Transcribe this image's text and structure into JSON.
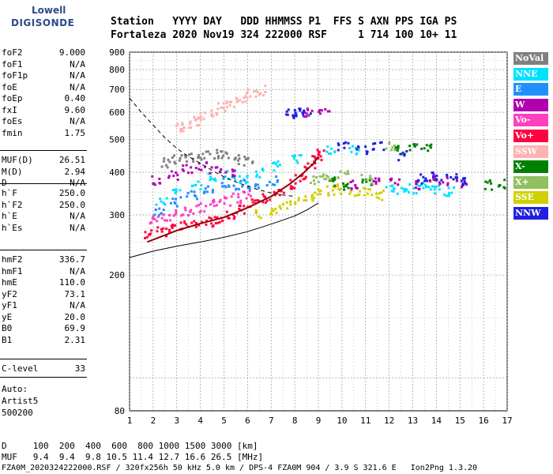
{
  "logo": {
    "line1": "Lowell",
    "line2": "DIGISONDE"
  },
  "header": {
    "line1": "Station   YYYY DAY   DDD HHMMSS P1  FFS S AXN PPS IGA PS",
    "line2": "Fortaleza 2020 Nov19 324 222000 RSF     1 714 100 10+ 11"
  },
  "params_group1": [
    {
      "name": "foF2",
      "value": "9.000"
    },
    {
      "name": "foF1",
      "value": "N/A"
    },
    {
      "name": "foF1p",
      "value": "N/A"
    },
    {
      "name": "foE",
      "value": "N/A"
    },
    {
      "name": "foEp",
      "value": "0.40"
    },
    {
      "name": "fxI",
      "value": "9.60"
    },
    {
      "name": "foEs",
      "value": "N/A"
    },
    {
      "name": "fmin",
      "value": "1.75"
    }
  ],
  "params_group2": [
    {
      "name": "MUF(D)",
      "value": "26.51"
    },
    {
      "name": "M(D)",
      "value": "2.94"
    },
    {
      "name": "D",
      "value": "N/A"
    }
  ],
  "params_group3": [
    {
      "name": "h`F",
      "value": "250.0"
    },
    {
      "name": "h`F2",
      "value": "250.0"
    },
    {
      "name": "h`E",
      "value": "N/A"
    },
    {
      "name": "h`Es",
      "value": "N/A"
    }
  ],
  "params_group4": [
    {
      "name": "hmF2",
      "value": "336.7"
    },
    {
      "name": "hmF1",
      "value": "N/A"
    },
    {
      "name": "hmE",
      "value": "110.0"
    },
    {
      "name": "yF2",
      "value": "73.1"
    },
    {
      "name": "yF1",
      "value": "N/A"
    },
    {
      "name": "yE",
      "value": "20.0"
    },
    {
      "name": "B0",
      "value": "69.9"
    },
    {
      "name": "B1",
      "value": "2.31"
    }
  ],
  "params_group5": [
    {
      "name": "C-level",
      "value": "33"
    }
  ],
  "auto": {
    "line1": "Auto:",
    "line2": "Artist5",
    "line3": "500200"
  },
  "footer": {
    "d_row": "D     100  200  400  600  800 1000 1500 3000 [km]",
    "muf_row": "MUF   9.4  9.4  9.8 10.5 11.4 12.7 16.6 26.5 [MHz]",
    "file_row": "FZA0M_2020324222000.RSF / 320fx256h 50 kHz 5.0 km / DPS-4 FZA0M 904 / 3.9 S 321.6 E   Ion2Png 1.3.20"
  },
  "legend": [
    {
      "label": "NoVal",
      "color": "#808080",
      "text_color": "#ffffff"
    },
    {
      "label": "NNE",
      "color": "#00e0ff",
      "text_color": "#ffffff"
    },
    {
      "label": "E",
      "color": "#2090ff",
      "text_color": "#ffffff"
    },
    {
      "label": "W",
      "color": "#b000b0",
      "text_color": "#ffffff"
    },
    {
      "label": "Vo-",
      "color": "#ff40c0",
      "text_color": "#ffffff"
    },
    {
      "label": "Vo+",
      "color": "#ff0040",
      "text_color": "#ffffff"
    },
    {
      "label": "SSW",
      "color": "#ffb0b0",
      "text_color": "#ffffff"
    },
    {
      "label": "X-",
      "color": "#008000",
      "text_color": "#ffffff"
    },
    {
      "label": "X+",
      "color": "#90c060",
      "text_color": "#ffffff"
    },
    {
      "label": "SSE",
      "color": "#d0d000",
      "text_color": "#ffffff"
    },
    {
      "label": "NNW",
      "color": "#2020e0",
      "text_color": "#ffffff"
    }
  ],
  "chart_data": {
    "type": "scatter",
    "title": "",
    "xlabel": "",
    "ylabel": "",
    "xlim": [
      1,
      17
    ],
    "ylim": [
      80,
      900
    ],
    "y_scale": "log",
    "x_ticks": [
      1,
      2,
      3,
      4,
      5,
      6,
      7,
      8,
      9,
      10,
      11,
      12,
      13,
      14,
      15,
      16,
      17
    ],
    "y_ticks": [
      80,
      200,
      300,
      400,
      500,
      600,
      700,
      800,
      900
    ],
    "grid": true,
    "legend_position": "right",
    "traces": [
      {
        "name": "Vo+",
        "color": "#ff0040",
        "points": [
          [
            1.8,
            265
          ],
          [
            2.3,
            270
          ],
          [
            2.8,
            278
          ],
          [
            3.3,
            282
          ],
          [
            3.8,
            285
          ],
          [
            4.3,
            288
          ],
          [
            4.8,
            295
          ],
          [
            5.3,
            302
          ],
          [
            5.8,
            312
          ],
          [
            6.3,
            325
          ],
          [
            6.8,
            338
          ],
          [
            7.3,
            355
          ],
          [
            7.8,
            372
          ],
          [
            8.2,
            392
          ],
          [
            8.6,
            415
          ],
          [
            8.9,
            440
          ],
          [
            9.0,
            455
          ]
        ]
      },
      {
        "name": "Vo-",
        "color": "#ff40c0",
        "points": [
          [
            2.0,
            290
          ],
          [
            2.5,
            300
          ],
          [
            3.0,
            305
          ],
          [
            3.5,
            310
          ],
          [
            4.0,
            318
          ],
          [
            4.5,
            325
          ],
          [
            5.0,
            330
          ],
          [
            5.5,
            338
          ],
          [
            6.0,
            348
          ]
        ]
      },
      {
        "name": "SSE",
        "color": "#d0d000",
        "points": [
          [
            6.5,
            305
          ],
          [
            7.0,
            310
          ],
          [
            7.5,
            320
          ],
          [
            8.0,
            330
          ],
          [
            8.5,
            340
          ],
          [
            9.0,
            350
          ],
          [
            9.5,
            355
          ],
          [
            10.0,
            360
          ],
          [
            10.5,
            350
          ],
          [
            11.0,
            355
          ],
          [
            11.5,
            345
          ]
        ]
      },
      {
        "name": "NNE",
        "color": "#00e0ff",
        "points": [
          [
            2.3,
            330
          ],
          [
            3.0,
            350
          ],
          [
            3.8,
            370
          ],
          [
            4.5,
            390
          ],
          [
            5.2,
            395
          ],
          [
            5.8,
            385
          ],
          [
            6.5,
            400
          ],
          [
            7.2,
            420
          ],
          [
            8.0,
            440
          ],
          [
            9.5,
            470
          ],
          [
            10.5,
            470
          ],
          [
            12.0,
            360
          ],
          [
            12.5,
            355
          ],
          [
            13.0,
            360
          ],
          [
            13.5,
            365
          ],
          [
            14.0,
            360
          ],
          [
            14.5,
            355
          ]
        ]
      },
      {
        "name": "E",
        "color": "#2090ff",
        "points": [
          [
            2.2,
            310
          ],
          [
            2.9,
            330
          ],
          [
            3.6,
            345
          ],
          [
            4.3,
            360
          ],
          [
            5.0,
            375
          ],
          [
            5.6,
            370
          ],
          [
            6.2,
            360
          ],
          [
            7.0,
            380
          ]
        ]
      },
      {
        "name": "W",
        "color": "#b000b0",
        "points": [
          [
            2.1,
            380
          ],
          [
            2.8,
            395
          ],
          [
            3.4,
            410
          ],
          [
            4.0,
            420
          ],
          [
            4.6,
            410
          ],
          [
            5.2,
            400
          ],
          [
            8.5,
            600
          ],
          [
            9.2,
            600
          ],
          [
            10.5,
            370
          ],
          [
            11.3,
            380
          ],
          [
            12.2,
            375
          ],
          [
            13.1,
            370
          ],
          [
            13.7,
            385
          ],
          [
            14.3,
            380
          ],
          [
            15.0,
            375
          ]
        ]
      },
      {
        "name": "NNW",
        "color": "#2020e0",
        "points": [
          [
            7.8,
            600
          ],
          [
            8.1,
            605
          ],
          [
            8.4,
            600
          ],
          [
            10.0,
            480
          ],
          [
            10.8,
            470
          ],
          [
            11.5,
            480
          ],
          [
            12.5,
            450
          ],
          [
            13.4,
            385
          ],
          [
            14.0,
            390
          ],
          [
            14.6,
            385
          ],
          [
            15.2,
            380
          ]
        ]
      },
      {
        "name": "X-",
        "color": "#008000",
        "points": [
          [
            9.5,
            380
          ],
          [
            10.2,
            370
          ],
          [
            11.0,
            375
          ],
          [
            12.3,
            470
          ],
          [
            13.0,
            480
          ],
          [
            13.5,
            475
          ],
          [
            16.2,
            370
          ],
          [
            16.8,
            372
          ]
        ]
      },
      {
        "name": "X+",
        "color": "#90c060",
        "points": [
          [
            8.8,
            380
          ],
          [
            9.3,
            385
          ],
          [
            10.0,
            395
          ],
          [
            11.0,
            385
          ],
          [
            12.0,
            480
          ]
        ]
      },
      {
        "name": "SSW",
        "color": "#ffb0b0",
        "points": [
          [
            3.1,
            540
          ],
          [
            3.4,
            555
          ],
          [
            3.7,
            570
          ],
          [
            4.1,
            585
          ],
          [
            4.5,
            600
          ],
          [
            4.9,
            625
          ],
          [
            5.3,
            645
          ],
          [
            5.7,
            665
          ],
          [
            6.1,
            685
          ],
          [
            6.5,
            700
          ]
        ]
      },
      {
        "name": "NoVal",
        "color": "#808080",
        "points": [
          [
            2.5,
            430
          ],
          [
            3.0,
            440
          ],
          [
            3.5,
            445
          ],
          [
            4.0,
            450
          ],
          [
            4.5,
            455
          ],
          [
            5.0,
            450
          ],
          [
            5.5,
            440
          ],
          [
            6.0,
            435
          ]
        ]
      }
    ],
    "profile_curve": [
      [
        1.75,
        250
      ],
      [
        3.0,
        270
      ],
      [
        4.0,
        283
      ],
      [
        5.0,
        295
      ],
      [
        6.0,
        315
      ],
      [
        7.0,
        340
      ],
      [
        7.8,
        370
      ],
      [
        8.4,
        400
      ],
      [
        8.8,
        425
      ],
      [
        9.0,
        445
      ]
    ],
    "muf_dashed_curve": [
      [
        1.0,
        660
      ],
      [
        1.5,
        600
      ],
      [
        2.0,
        550
      ],
      [
        2.5,
        505
      ],
      [
        3.0,
        470
      ],
      [
        3.5,
        445
      ],
      [
        4.0,
        425
      ],
      [
        4.5,
        405
      ],
      [
        5.0,
        388
      ],
      [
        5.5,
        375
      ],
      [
        6.0,
        364
      ],
      [
        6.5,
        355
      ],
      [
        7.0,
        348
      ],
      [
        7.5,
        343
      ],
      [
        8.0,
        340
      ]
    ],
    "lower_curve": [
      [
        1.0,
        225
      ],
      [
        2.0,
        235
      ],
      [
        3.0,
        243
      ],
      [
        4.0,
        250
      ],
      [
        5.0,
        258
      ],
      [
        6.0,
        268
      ],
      [
        7.0,
        282
      ],
      [
        8.0,
        298
      ],
      [
        8.5,
        310
      ],
      [
        9.0,
        325
      ]
    ]
  }
}
